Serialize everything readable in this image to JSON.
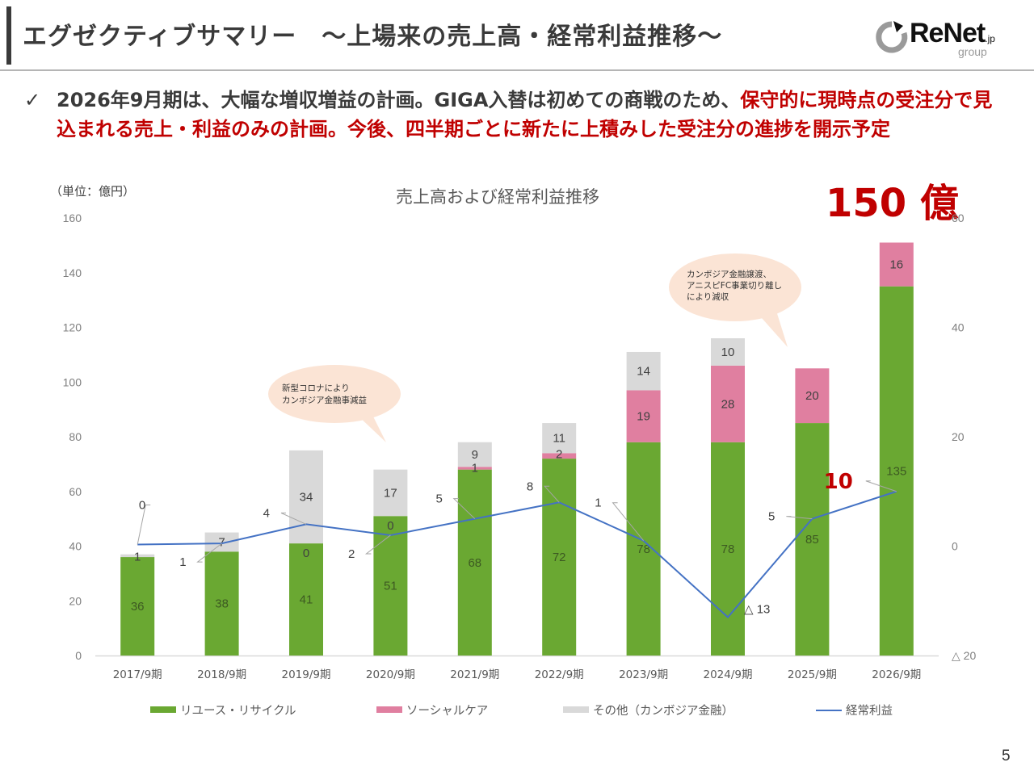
{
  "header": {
    "title": "エグゼクティブサマリー　～上場来の売上高・経常利益推移～",
    "logo": {
      "brand": "ReNet",
      "suffix": ".jp",
      "sub": "group"
    }
  },
  "bullet": {
    "check_icon": "✓",
    "segments": [
      {
        "text": "2026年9月期は、大幅な増収増益の計画。GIGA入替は初めての商戦のため、",
        "emphasis": false
      },
      {
        "text": "保守的に現時点の受注分で見込まれる売上・利益のみの計画。今後、四半期ごとに新たに上積みした受注分の進捗を開示予定",
        "emphasis": true
      }
    ]
  },
  "unit_label": "（単位：億円）",
  "highlight_total": "150 億",
  "highlight_profit": "10",
  "page_number": "5",
  "colors": {
    "reuse": "#6aa832",
    "social": "#e07fa0",
    "other": "#d9d9d9",
    "profit": "#4472c4",
    "accent_red": "#c00000",
    "callout": "#fbe4d5"
  },
  "callouts": [
    {
      "lines": [
        "新型コロナにより",
        "カンボジア金融事減益"
      ]
    },
    {
      "lines": [
        "カンボジア金融譲渡、",
        "アニスピFC事業切り離し",
        "により減収"
      ]
    }
  ],
  "chart_data": {
    "type": "bar",
    "stacked": true,
    "title": "売上高および経常利益推移",
    "xlabel": "",
    "ylabel": "（単位：億円）",
    "ylim": [
      0,
      160
    ],
    "yticks": [
      0,
      20,
      40,
      60,
      80,
      100,
      120,
      140,
      160
    ],
    "y2lim": [
      -20,
      60
    ],
    "y2ticks": [
      {
        "value": 60,
        "label": "60"
      },
      {
        "value": 40,
        "label": "40"
      },
      {
        "value": 20,
        "label": "20"
      },
      {
        "value": 0,
        "label": "0"
      },
      {
        "value": -20,
        "label": "△ 20"
      }
    ],
    "grid": false,
    "legend_position": "bottom",
    "categories": [
      "2017/9期",
      "2018/9期",
      "2019/9期",
      "2020/9期",
      "2021/9期",
      "2022/9期",
      "2023/9期",
      "2024/9期",
      "2025/9期",
      "2026/9期"
    ],
    "series": [
      {
        "name": "リユース・リサイクル",
        "kind": "bar",
        "axis": "left",
        "color_key": "reuse",
        "values": [
          36,
          38,
          41,
          51,
          68,
          72,
          78,
          78,
          85,
          135
        ],
        "labels": [
          "36",
          "38",
          "41",
          "51",
          "68",
          "72",
          "78",
          "78",
          "85",
          "135"
        ]
      },
      {
        "name": "ソーシャルケア",
        "kind": "bar",
        "axis": "left",
        "color_key": "social",
        "values": [
          0,
          0,
          0,
          0,
          1,
          2,
          19,
          28,
          20,
          16
        ],
        "labels": [
          null,
          null,
          null,
          null,
          "1",
          "2",
          "19",
          "28",
          "20",
          "16"
        ]
      },
      {
        "name": "その他（カンボジア金融）",
        "kind": "bar",
        "axis": "left",
        "color_key": "other",
        "values": [
          1,
          7,
          34,
          17,
          9,
          11,
          14,
          10,
          0,
          0
        ],
        "labels": [
          "1",
          "7",
          "34",
          "17",
          "9",
          "11",
          "14",
          "10",
          null,
          null
        ],
        "extra_zero_labels": [
          "",
          "",
          "0",
          "0",
          "",
          "",
          "",
          "",
          "",
          ""
        ]
      },
      {
        "name": "経常利益",
        "kind": "line",
        "axis": "right",
        "color_key": "profit",
        "values": [
          0.3,
          0.5,
          4,
          2,
          5,
          8,
          1,
          -13,
          5,
          10
        ],
        "labels": [
          "0",
          "1",
          "4",
          "2",
          "5",
          "8",
          "1",
          "△ 13",
          "5",
          "10"
        ]
      }
    ]
  }
}
